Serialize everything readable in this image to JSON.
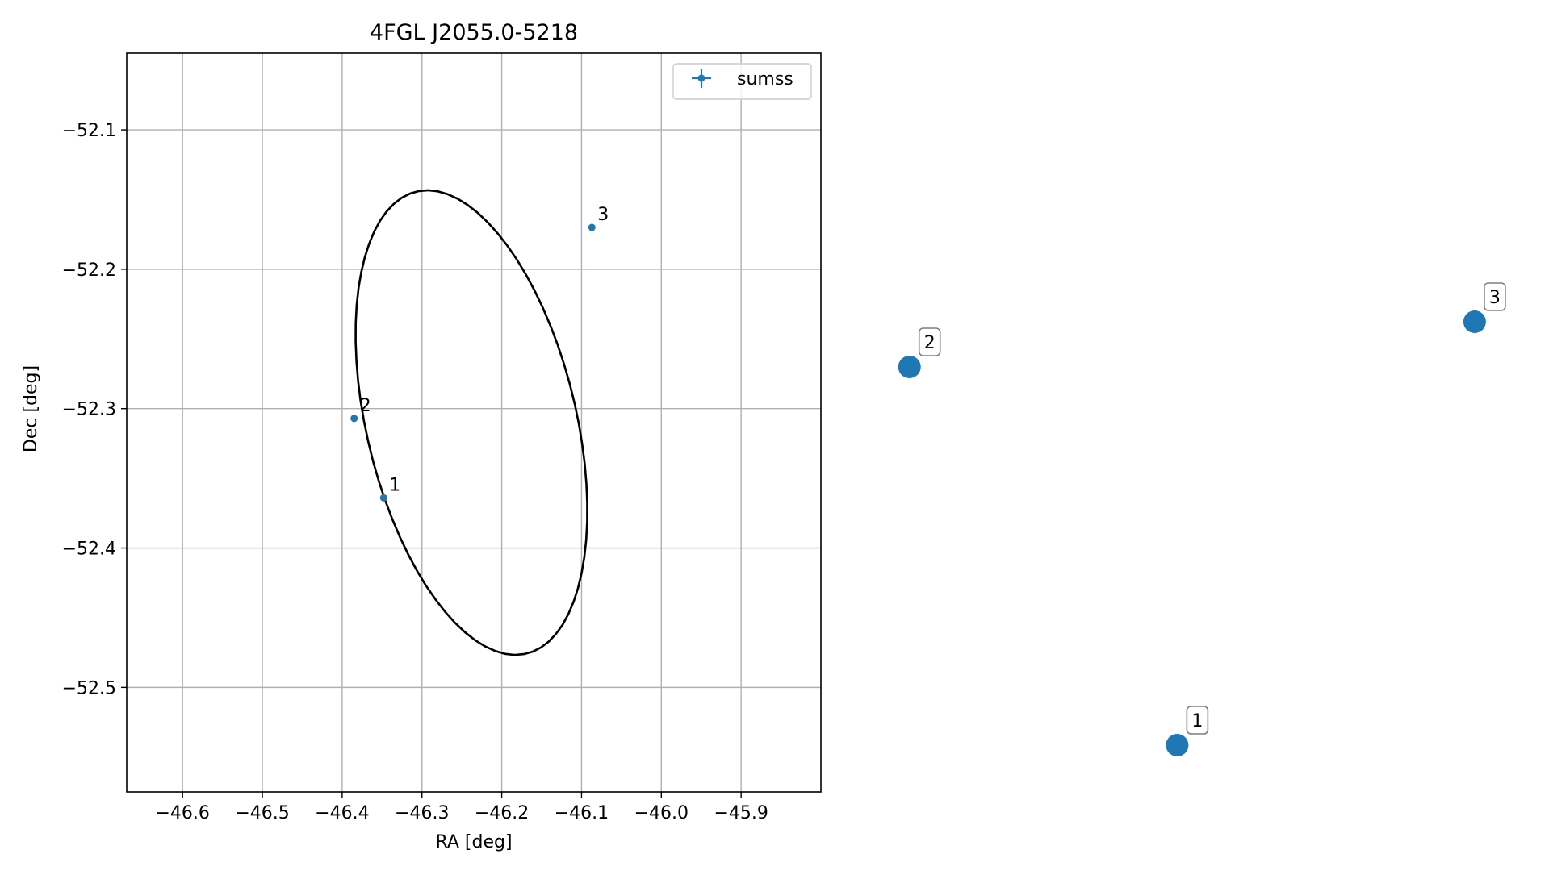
{
  "chart_data": [
    {
      "type": "scatter",
      "title": "4FGL J2055.0-5218",
      "xlabel": "RA [deg]",
      "ylabel": "Dec [deg]",
      "xlim": [
        -46.67,
        -45.8
      ],
      "ylim": [
        -52.575,
        -52.045
      ],
      "x_ticks": [
        -46.6,
        -46.5,
        -46.4,
        -46.3,
        -46.2,
        -46.1,
        -46.0,
        -45.9
      ],
      "x_tick_labels": [
        "−46.6",
        "−46.5",
        "−46.4",
        "−46.3",
        "−46.2",
        "−46.1",
        "−46.0",
        "−45.9"
      ],
      "y_ticks": [
        -52.1,
        -52.2,
        -52.3,
        -52.4,
        -52.5
      ],
      "y_tick_labels": [
        "−52.1",
        "−52.2",
        "−52.3",
        "−52.4",
        "−52.5"
      ],
      "grid": true,
      "legend": {
        "position": "top-right",
        "entries": [
          "sumss"
        ]
      },
      "colors": {
        "points": "#1f77b4",
        "ellipse": "#000000",
        "grid": "#b0b0b0"
      },
      "series": [
        {
          "name": "sumss",
          "points": [
            {
              "label": "1",
              "x": -46.348,
              "y": -52.364
            },
            {
              "label": "2",
              "x": -46.385,
              "y": -52.307
            },
            {
              "label": "3",
              "x": -46.087,
              "y": -52.17
            }
          ]
        }
      ],
      "ellipse": {
        "center_x": -46.238,
        "center_y": -52.31,
        "semi_axis_1": 0.185,
        "semi_axis_2": 0.121,
        "rotation_deg": -55
      }
    },
    {
      "type": "scatter",
      "axes": false,
      "xlim": [
        0,
        1
      ],
      "ylim": [
        0,
        1
      ],
      "color": "#1f77b4",
      "points": [
        {
          "label": "1",
          "x": 0.47,
          "y": 0.05
        },
        {
          "label": "2",
          "x": 0.02,
          "y": 0.72
        },
        {
          "label": "3",
          "x": 0.97,
          "y": 0.8
        }
      ]
    }
  ]
}
